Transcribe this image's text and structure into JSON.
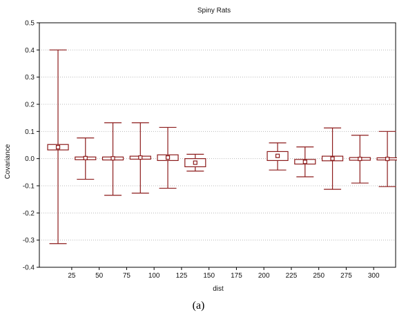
{
  "chart_data": {
    "type": "box",
    "title": "Spiny Rats",
    "xlabel": "dist",
    "ylabel": "Covariance",
    "ylim": [
      -0.4,
      0.5
    ],
    "yticks": [
      "0.5",
      "0.4",
      "0.3",
      "0.2",
      "0.1",
      "0.0",
      "-0.1",
      "-0.2",
      "-0.3",
      "-0.4"
    ],
    "yticks_values": [
      0.5,
      0.4,
      0.3,
      0.2,
      0.1,
      0.0,
      -0.1,
      -0.2,
      -0.3,
      -0.4
    ],
    "xticks": [
      "25",
      "50",
      "75",
      "100",
      "125",
      "150",
      "175",
      "200",
      "225",
      "250",
      "275",
      "300"
    ],
    "xticks_values": [
      25,
      50,
      75,
      100,
      125,
      150,
      175,
      200,
      225,
      250,
      275,
      300
    ],
    "xlim": [
      -4.5,
      320
    ],
    "grid": true,
    "color": "#8b1a1a",
    "boxes": [
      {
        "x": 12.5,
        "center": 0.042,
        "box_low": 0.032,
        "box_high": 0.052,
        "whisker_low": -0.313,
        "whisker_high": 0.4
      },
      {
        "x": 37.5,
        "center": 0.002,
        "box_low": -0.004,
        "box_high": 0.006,
        "whisker_low": -0.076,
        "whisker_high": 0.076
      },
      {
        "x": 62.5,
        "center": 0.001,
        "box_low": -0.005,
        "box_high": 0.006,
        "whisker_low": -0.135,
        "whisker_high": 0.132
      },
      {
        "x": 87.5,
        "center": 0.004,
        "box_low": -0.002,
        "box_high": 0.009,
        "whisker_low": -0.127,
        "whisker_high": 0.132
      },
      {
        "x": 112.5,
        "center": 0.004,
        "box_low": -0.007,
        "box_high": 0.014,
        "whisker_low": -0.109,
        "whisker_high": 0.115
      },
      {
        "x": 137.5,
        "center": -0.015,
        "box_low": -0.03,
        "box_high": 0.0,
        "whisker_low": -0.046,
        "whisker_high": 0.016
      },
      {
        "x": 212.5,
        "center": 0.01,
        "box_low": -0.007,
        "box_high": 0.026,
        "whisker_low": -0.042,
        "whisker_high": 0.058
      },
      {
        "x": 237.5,
        "center": -0.012,
        "box_low": -0.02,
        "box_high": -0.003,
        "whisker_low": -0.067,
        "whisker_high": 0.043
      },
      {
        "x": 262.5,
        "center": 0.0,
        "box_low": -0.008,
        "box_high": 0.009,
        "whisker_low": -0.113,
        "whisker_high": 0.113
      },
      {
        "x": 287.5,
        "center": -0.001,
        "box_low": -0.006,
        "box_high": 0.004,
        "whisker_low": -0.09,
        "whisker_high": 0.086
      },
      {
        "x": 312.5,
        "center": -0.001,
        "box_low": -0.005,
        "box_high": 0.003,
        "whisker_low": -0.103,
        "whisker_high": 0.1
      }
    ]
  },
  "caption": "(a)"
}
